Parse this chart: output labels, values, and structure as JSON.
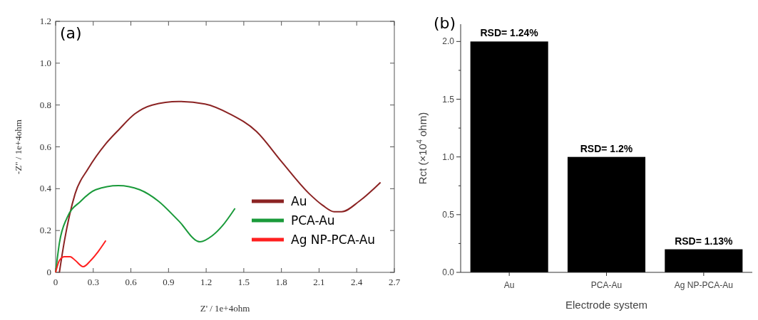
{
  "chart_data": [
    {
      "type": "line",
      "xlabel": "Z' / 1e+4ohm",
      "ylabel": "-Z\" / 1e+4ohm",
      "annotations": [
        "(a)"
      ],
      "xlim": [
        0,
        2.7
      ],
      "ylim": [
        0,
        1.2
      ],
      "xticks": [
        0,
        0.3,
        0.6,
        0.9,
        1.2,
        1.5,
        1.8,
        2.1,
        2.4,
        2.7
      ],
      "yticks": [
        0,
        0.2,
        0.4,
        0.6,
        0.8,
        {
          "value": 1,
          "label": "1.0"
        },
        1.2
      ],
      "grid": false,
      "legend": "bottom right",
      "series": [
        {
          "name": "Au",
          "color": "#8b2323",
          "x": [
            0.03,
            0.07,
            0.156,
            0.26,
            0.4,
            0.51,
            0.63,
            0.77,
            0.98,
            1.19,
            1.39,
            1.6,
            1.8,
            2.02,
            2.13,
            2.22,
            2.28,
            2.42,
            2.59
          ],
          "values": [
            0,
            0.15,
            0.377,
            0.496,
            0.615,
            0.686,
            0.757,
            0.8,
            0.817,
            0.805,
            0.757,
            0.674,
            0.53,
            0.377,
            0.32,
            0.29,
            0.29,
            0.34,
            0.43
          ]
        },
        {
          "name": "PCA-Au",
          "color": "#1a9a3a",
          "x": [
            0,
            0.03,
            0.09,
            0.2,
            0.32,
            0.5,
            0.67,
            0.82,
            0.98,
            1.15,
            1.25,
            1.33,
            1.43
          ],
          "values": [
            0,
            0.14,
            0.26,
            0.34,
            0.395,
            0.415,
            0.395,
            0.34,
            0.247,
            0.146,
            0.176,
            0.223,
            0.306
          ]
        },
        {
          "name": "Ag NP-PCA-Au",
          "color": "#ff2020",
          "x": [
            0,
            0.03,
            0.07,
            0.115,
            0.157,
            0.22,
            0.28,
            0.34,
            0.4
          ],
          "values": [
            0,
            0.057,
            0.075,
            0.075,
            0.057,
            0.027,
            0.057,
            0.1,
            0.152
          ]
        }
      ]
    },
    {
      "type": "bar",
      "xlabel": "Electrode system",
      "ylabel": "Rct (×10$^{4}$ ohm)",
      "categories": [
        "Au",
        "PCA-Au",
        "Ag NP-PCA-Au"
      ],
      "values": [
        2.0,
        1.0,
        0.2
      ],
      "color": "#000000",
      "ylim": [
        0,
        2.15
      ],
      "yticks": [
        {
          "value": 0,
          "label": "0.0"
        },
        {
          "value": 0.25,
          "label": null
        },
        {
          "value": 0.5,
          "label": "0.5"
        },
        {
          "value": 0.75,
          "label": null
        },
        {
          "value": 1.0,
          "label": "1.0"
        },
        {
          "value": 1.25,
          "label": null
        },
        {
          "value": 1.5,
          "label": "1.5"
        },
        {
          "value": 1.75,
          "label": null
        },
        {
          "value": 2.0,
          "label": "2.0"
        }
      ],
      "annotations": [
        "(b)",
        {
          "text": "RSD= 1.24%",
          "x": "Au",
          "y": 2.0
        },
        {
          "text": "RSD= 1.2%",
          "x": "PCA-Au",
          "y": 1.0
        },
        {
          "text": "RSD= 1.13%",
          "x": "Ag NP-PCA-Au",
          "y": 0.2
        }
      ]
    }
  ]
}
